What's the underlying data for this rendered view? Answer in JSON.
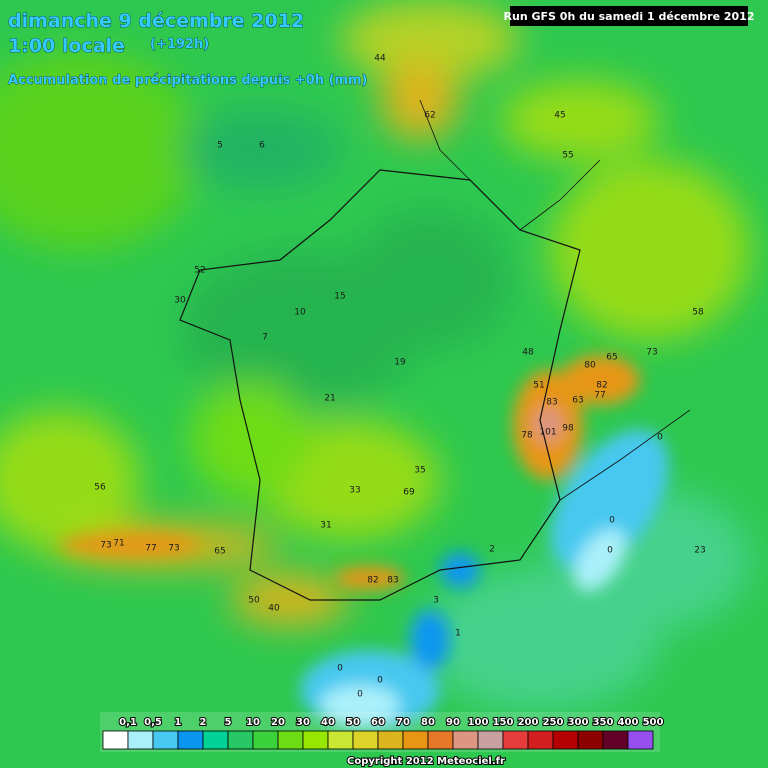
{
  "header": {
    "date": "dimanche 9 décembre 2012",
    "time": "1:00 locale",
    "lead": "(+192h)",
    "subtitle": "Accumulation de précipitations depuis +0h (mm)",
    "run": "Run GFS 0h du samedi 1 décembre 2012"
  },
  "map": {
    "labels": [
      "101",
      "98",
      "78",
      "83",
      "80",
      "82",
      "77",
      "73",
      "65",
      "63",
      "51",
      "71",
      "69",
      "73",
      "77",
      "73",
      "65",
      "82",
      "83",
      "62",
      "55",
      "58",
      "45",
      "44",
      "5",
      "6",
      "7",
      "10",
      "15",
      "19",
      "21",
      "33",
      "31",
      "0",
      "0",
      "0",
      "0",
      "1",
      "2",
      "3",
      "0",
      "0",
      "23",
      "35",
      "48",
      "50",
      "40",
      "30",
      "52",
      "56"
    ]
  },
  "legend": {
    "labels": [
      "0,1",
      "0,5",
      "1",
      "2",
      "5",
      "10",
      "20",
      "30",
      "40",
      "50",
      "60",
      "70",
      "80",
      "90",
      "100",
      "150",
      "200",
      "250",
      "300",
      "350",
      "400",
      "500"
    ],
    "colors": [
      "#ffffff",
      "#aaf0fa",
      "#46c8f0",
      "#0a96f0",
      "#00d296",
      "#28c864",
      "#3cd23c",
      "#6edc14",
      "#96e600",
      "#c8e632",
      "#dcd228",
      "#dcb41e",
      "#e69614",
      "#e67828",
      "#dc9682",
      "#c8a0a0",
      "#e63c3c",
      "#d21e1e",
      "#b40000",
      "#8c0000",
      "#640028",
      "#9650f0"
    ]
  },
  "footer": {
    "copyright": "Copyright 2012 Meteociel.fr"
  }
}
